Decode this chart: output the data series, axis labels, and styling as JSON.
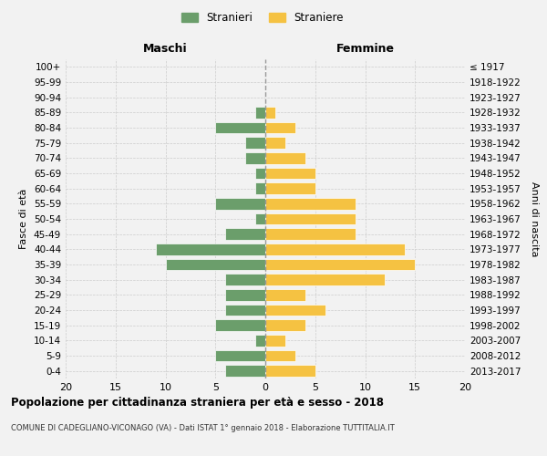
{
  "age_groups": [
    "100+",
    "95-99",
    "90-94",
    "85-89",
    "80-84",
    "75-79",
    "70-74",
    "65-69",
    "60-64",
    "55-59",
    "50-54",
    "45-49",
    "40-44",
    "35-39",
    "30-34",
    "25-29",
    "20-24",
    "15-19",
    "10-14",
    "5-9",
    "0-4"
  ],
  "birth_years": [
    "≤ 1917",
    "1918-1922",
    "1923-1927",
    "1928-1932",
    "1933-1937",
    "1938-1942",
    "1943-1947",
    "1948-1952",
    "1953-1957",
    "1958-1962",
    "1963-1967",
    "1968-1972",
    "1973-1977",
    "1978-1982",
    "1983-1987",
    "1988-1992",
    "1993-1997",
    "1998-2002",
    "2003-2007",
    "2008-2012",
    "2013-2017"
  ],
  "males": [
    0,
    0,
    0,
    1,
    5,
    2,
    2,
    1,
    1,
    5,
    1,
    4,
    11,
    10,
    4,
    4,
    4,
    5,
    1,
    5,
    4
  ],
  "females": [
    0,
    0,
    0,
    1,
    3,
    2,
    4,
    5,
    5,
    9,
    9,
    9,
    14,
    15,
    12,
    4,
    6,
    4,
    2,
    3,
    5
  ],
  "male_color": "#6b9e6b",
  "female_color": "#f5c242",
  "background_color": "#f2f2f2",
  "grid_color": "#cccccc",
  "bar_edge_color": "#ffffff",
  "title_main": "Popolazione per cittadinanza straniera per età e sesso - 2018",
  "title_sub": "COMUNE DI CADEGLIANO-VICONAGO (VA) - Dati ISTAT 1° gennaio 2018 - Elaborazione TUTTITALIA.IT",
  "xlabel_left": "Maschi",
  "xlabel_right": "Femmine",
  "ylabel_left": "Fasce di età",
  "ylabel_right": "Anni di nascita",
  "legend_male": "Stranieri",
  "legend_female": "Straniere",
  "xlim": 20
}
